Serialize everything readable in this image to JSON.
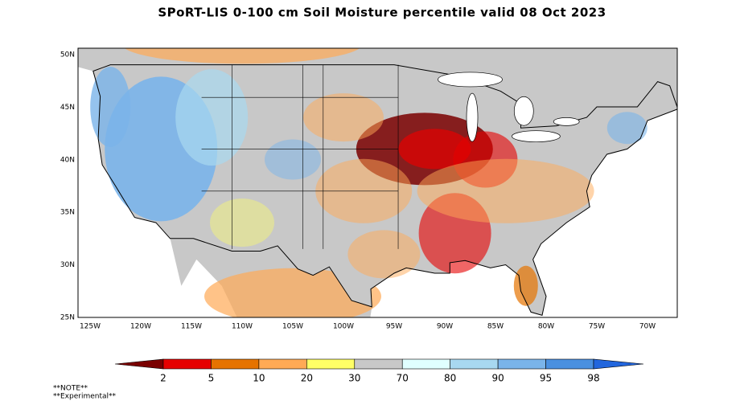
{
  "header": {
    "title": "SPoRT-LIS 0-100 cm Soil Moisture percentile valid 08 Oct 2023"
  },
  "map": {
    "lat_labels": [
      "50N",
      "45N",
      "40N",
      "35N",
      "30N",
      "25N"
    ],
    "lon_labels": [
      "125W",
      "120W",
      "115W",
      "110W",
      "105W",
      "100W",
      "95W",
      "90W",
      "85W",
      "80W",
      "75W",
      "70W"
    ]
  },
  "colorbar": {
    "colors": [
      "#7a0000",
      "#e60000",
      "#e67300",
      "#ffaa55",
      "#ffff66",
      "#c8c8c8",
      "#e0ffff",
      "#a8d8f0",
      "#7ab4ea",
      "#4a90e0",
      "#2266dd"
    ],
    "labels": [
      "2",
      "5",
      "10",
      "20",
      "30",
      "70",
      "80",
      "90",
      "95",
      "98"
    ]
  },
  "notes": [
    "**NOTE**",
    "**Experimental**"
  ]
}
